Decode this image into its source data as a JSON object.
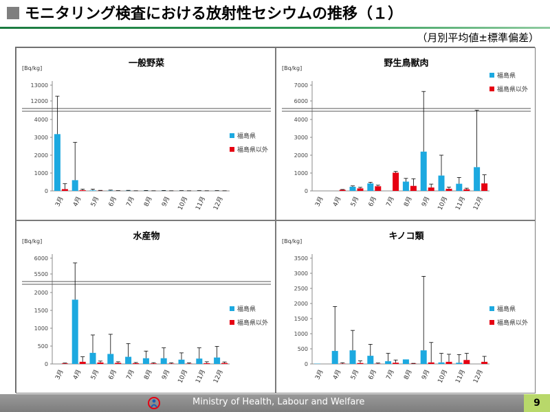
{
  "slide": {
    "title": "モニタリング検査における放射性セシウムの推移（１）",
    "subtitle": "（月別平均値±標準偏差）",
    "footer": "Ministry of Health, Labour and Welfare",
    "page_number": "9"
  },
  "colors": {
    "fukushima": "#1ca9e0",
    "other": "#e60012",
    "footer_bg": "#8c8c8c",
    "page_badge": "#b8d86a",
    "title_rule": "#2f9a55"
  },
  "chart_data": [
    {
      "type": "bar",
      "title": "一般野菜",
      "ylabel": "[Bq/kg]",
      "categories": [
        "3月",
        "4月",
        "5月",
        "6月",
        "7月",
        "8月",
        "9月",
        "10月",
        "11月",
        "12月"
      ],
      "y_ticks_lower": [
        0,
        1000,
        2000,
        3000,
        4000
      ],
      "y_ticks_upper": [
        12000,
        13000
      ],
      "axis_break": true,
      "series": [
        {
          "name": "福島県",
          "color": "#1ca9e0",
          "values": [
            3180,
            600,
            30,
            15,
            10,
            8,
            8,
            5,
            5,
            5
          ],
          "error": [
            9120,
            2120,
            70,
            30,
            20,
            15,
            15,
            10,
            10,
            10
          ]
        },
        {
          "name": "福島県以外",
          "color": "#e60012",
          "values": [
            100,
            40,
            10,
            5,
            3,
            3,
            3,
            3,
            3,
            3
          ],
          "error": [
            300,
            60,
            20,
            10,
            5,
            5,
            5,
            5,
            5,
            5
          ]
        }
      ],
      "legend_position": "right"
    },
    {
      "type": "bar",
      "title": "野生鳥獣肉",
      "ylabel": "[Bq/kg]",
      "categories": [
        "3月",
        "4月",
        "5月",
        "6月",
        "7月",
        "8月",
        "9月",
        "10月",
        "11月",
        "12月"
      ],
      "y_ticks_lower": [
        0,
        1000,
        2000,
        3000,
        4000
      ],
      "y_ticks_upper": [
        6000,
        7000
      ],
      "axis_break": true,
      "series": [
        {
          "name": "福島県",
          "color": "#1ca9e0",
          "values": [
            null,
            null,
            230,
            420,
            null,
            520,
            2200,
            860,
            400,
            1330
          ],
          "error": [
            null,
            null,
            50,
            60,
            null,
            180,
            4400,
            1140,
            350,
            2770
          ]
        },
        {
          "name": "福島県以外",
          "color": "#e60012",
          "values": [
            null,
            60,
            140,
            260,
            1020,
            280,
            190,
            120,
            90,
            420
          ],
          "error": [
            null,
            20,
            60,
            60,
            70,
            400,
            190,
            90,
            60,
            480
          ]
        }
      ],
      "legend_position": "top-right"
    },
    {
      "type": "bar",
      "title": "水産物",
      "ylabel": "[Bq/kg]",
      "categories": [
        "3月",
        "4月",
        "5月",
        "6月",
        "7月",
        "8月",
        "9月",
        "10月",
        "11月",
        "12月"
      ],
      "y_ticks_lower": [
        0,
        500,
        1000,
        1500,
        2000
      ],
      "y_ticks_upper": [
        5500,
        6000
      ],
      "axis_break": true,
      "series": [
        {
          "name": "福島県",
          "color": "#1ca9e0",
          "values": [
            null,
            1800,
            310,
            280,
            200,
            160,
            160,
            120,
            150,
            180
          ],
          "error": [
            null,
            4050,
            500,
            550,
            370,
            200,
            290,
            190,
            300,
            310
          ]
        },
        {
          "name": "福島県以外",
          "color": "#e60012",
          "values": [
            15,
            60,
            40,
            30,
            20,
            15,
            10,
            10,
            20,
            25
          ],
          "error": [
            10,
            140,
            40,
            30,
            20,
            20,
            20,
            20,
            40,
            30
          ]
        }
      ],
      "legend_position": "right"
    },
    {
      "type": "bar",
      "title": "キノコ類",
      "ylabel": "[Bq/kg]",
      "categories": [
        "3月",
        "4月",
        "5月",
        "6月",
        "7月",
        "8月",
        "9月",
        "10月",
        "11月",
        "12月"
      ],
      "y_ticks": [
        0,
        500,
        1000,
        1500,
        2000,
        2500,
        3000,
        3500
      ],
      "axis_break": false,
      "series": [
        {
          "name": "福島県",
          "color": "#1ca9e0",
          "values": [
            10,
            430,
            450,
            270,
            90,
            150,
            450,
            50,
            40,
            null
          ],
          "error": [
            0,
            1470,
            660,
            380,
            260,
            0,
            2450,
            300,
            270,
            null
          ]
        },
        {
          "name": "福島県以外",
          "color": "#e60012",
          "values": [
            null,
            10,
            30,
            10,
            40,
            10,
            50,
            70,
            130,
            70
          ],
          "error": [
            null,
            30,
            70,
            20,
            90,
            10,
            660,
            250,
            220,
            180
          ]
        }
      ],
      "legend_position": "right"
    }
  ]
}
